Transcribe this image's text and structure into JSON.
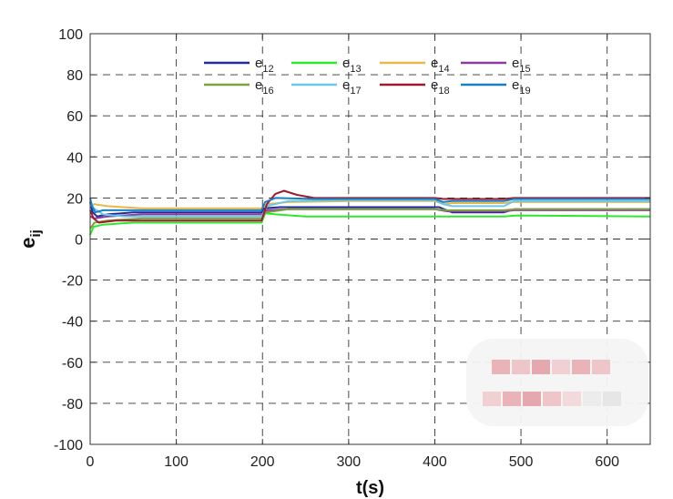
{
  "chart_data": {
    "type": "line",
    "xlabel": "t(s)",
    "ylabel": {
      "base": "e",
      "sub": "ij"
    },
    "xlim": [
      0,
      650
    ],
    "ylim": [
      -100,
      100
    ],
    "xticks": [
      "0",
      "100",
      "200",
      "300",
      "400",
      "500",
      "600"
    ],
    "yticks": [
      "-100",
      "-80",
      "-60",
      "-40",
      "-20",
      "0",
      "20",
      "40",
      "60",
      "80",
      "100"
    ],
    "grid": true,
    "legend_position": "top-center",
    "series": [
      {
        "name": "e12",
        "label_base": "e",
        "label_sub": "12",
        "color": "#1f2a9c",
        "points": [
          [
            0,
            18
          ],
          [
            3,
            13
          ],
          [
            8,
            11
          ],
          [
            20,
            12
          ],
          [
            50,
            13
          ],
          [
            199,
            13
          ],
          [
            202,
            15
          ],
          [
            220,
            15.5
          ],
          [
            300,
            15.5
          ],
          [
            395,
            15.5
          ],
          [
            405,
            15.5
          ],
          [
            420,
            13
          ],
          [
            480,
            13
          ],
          [
            492,
            14.5
          ],
          [
            650,
            14.5
          ]
        ]
      },
      {
        "name": "e13",
        "label_base": "e",
        "label_sub": "13",
        "color": "#2ee82e",
        "points": [
          [
            0,
            2
          ],
          [
            4,
            6
          ],
          [
            15,
            7
          ],
          [
            50,
            8
          ],
          [
            199,
            8
          ],
          [
            203,
            12.5
          ],
          [
            215,
            12
          ],
          [
            250,
            11
          ],
          [
            400,
            11
          ],
          [
            420,
            11
          ],
          [
            480,
            11
          ],
          [
            495,
            11.5
          ],
          [
            650,
            11
          ]
        ]
      },
      {
        "name": "e14",
        "label_base": "e",
        "label_sub": "14",
        "color": "#e8b84a",
        "points": [
          [
            0,
            16
          ],
          [
            5,
            17
          ],
          [
            20,
            16
          ],
          [
            60,
            15
          ],
          [
            199,
            15
          ],
          [
            205,
            17
          ],
          [
            230,
            18
          ],
          [
            300,
            18.5
          ],
          [
            400,
            18.5
          ],
          [
            410,
            17
          ],
          [
            420,
            17.5
          ],
          [
            480,
            17.5
          ],
          [
            490,
            18
          ],
          [
            650,
            18
          ]
        ]
      },
      {
        "name": "e15",
        "label_base": "e",
        "label_sub": "15",
        "color": "#8a3e9a",
        "points": [
          [
            0,
            11
          ],
          [
            5,
            10
          ],
          [
            20,
            11
          ],
          [
            60,
            12
          ],
          [
            199,
            12
          ],
          [
            205,
            14
          ],
          [
            230,
            14.5
          ],
          [
            400,
            14.5
          ],
          [
            415,
            13.5
          ],
          [
            480,
            13.5
          ],
          [
            492,
            14
          ],
          [
            650,
            14
          ]
        ]
      },
      {
        "name": "e16",
        "label_base": "e",
        "label_sub": "16",
        "color": "#7ca33a",
        "points": [
          [
            0,
            5
          ],
          [
            5,
            8
          ],
          [
            20,
            9
          ],
          [
            60,
            10
          ],
          [
            199,
            10
          ],
          [
            204,
            13
          ],
          [
            230,
            14.5
          ],
          [
            400,
            14.5
          ],
          [
            415,
            14
          ],
          [
            480,
            14
          ],
          [
            493,
            14.5
          ],
          [
            650,
            14.5
          ]
        ]
      },
      {
        "name": "e17",
        "label_base": "e",
        "label_sub": "17",
        "color": "#6ac8e8",
        "points": [
          [
            0,
            19
          ],
          [
            4,
            15
          ],
          [
            15,
            12
          ],
          [
            40,
            11
          ],
          [
            199,
            11
          ],
          [
            205,
            16
          ],
          [
            230,
            18.5
          ],
          [
            300,
            19
          ],
          [
            400,
            19
          ],
          [
            410,
            17
          ],
          [
            420,
            16
          ],
          [
            480,
            16
          ],
          [
            492,
            18.5
          ],
          [
            650,
            18.5
          ]
        ]
      },
      {
        "name": "e18",
        "label_base": "e",
        "label_sub": "18",
        "color": "#9e1a2c",
        "points": [
          [
            0,
            14
          ],
          [
            4,
            10
          ],
          [
            10,
            8
          ],
          [
            30,
            9
          ],
          [
            60,
            9
          ],
          [
            199,
            9
          ],
          [
            205,
            17
          ],
          [
            215,
            22
          ],
          [
            225,
            23.5
          ],
          [
            240,
            21.5
          ],
          [
            260,
            20
          ],
          [
            400,
            20
          ],
          [
            410,
            19.5
          ],
          [
            480,
            19.5
          ],
          [
            492,
            20
          ],
          [
            650,
            20
          ]
        ]
      },
      {
        "name": "e19",
        "label_base": "e",
        "label_sub": "19",
        "color": "#1b7fc4",
        "points": [
          [
            0,
            20
          ],
          [
            2,
            16
          ],
          [
            6,
            13
          ],
          [
            15,
            14
          ],
          [
            50,
            14
          ],
          [
            199,
            14
          ],
          [
            203,
            18
          ],
          [
            215,
            20
          ],
          [
            260,
            19.5
          ],
          [
            400,
            19.5
          ],
          [
            410,
            18
          ],
          [
            420,
            18.5
          ],
          [
            480,
            18.5
          ],
          [
            492,
            19.5
          ],
          [
            650,
            19.5
          ]
        ]
      }
    ]
  }
}
